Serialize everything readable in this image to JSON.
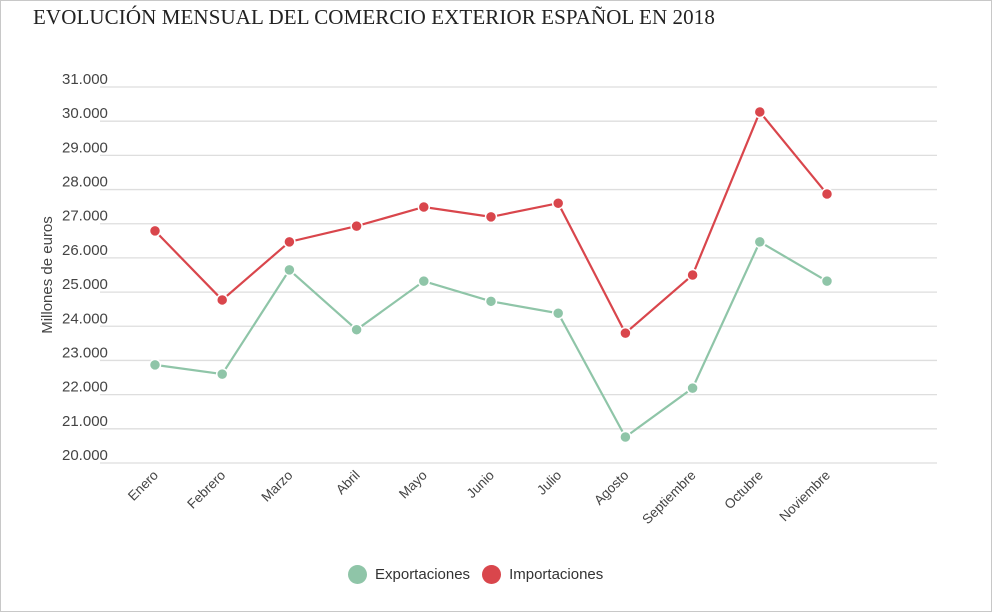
{
  "chart_data": {
    "type": "line",
    "title": "EVOLUCIÓN MENSUAL DEL COMERCIO EXTERIOR ESPAÑOL EN 2018",
    "xlabel": "",
    "ylabel": "Millones de euros",
    "ylim": [
      20000,
      31000
    ],
    "yticks": [
      20000,
      21000,
      22000,
      23000,
      24000,
      25000,
      26000,
      27000,
      28000,
      29000,
      30000,
      31000
    ],
    "ytick_labels": [
      "20.000",
      "21.000",
      "22.000",
      "23.000",
      "24.000",
      "25.000",
      "26.000",
      "27.000",
      "28.000",
      "29.000",
      "30.000",
      "31.000"
    ],
    "grid": true,
    "legend_position": "bottom",
    "categories": [
      "Enero",
      "Febrero",
      "Marzo",
      "Abril",
      "Mayo",
      "Junio",
      "Julio",
      "Agosto",
      "Septiembre",
      "Octubre",
      "Noviembre"
    ],
    "series": [
      {
        "name": "Exportaciones",
        "color": "#8fc5a8",
        "values": [
          22870,
          22600,
          25650,
          23900,
          25320,
          24730,
          24380,
          20760,
          22190,
          26470,
          25320
        ]
      },
      {
        "name": "Importaciones",
        "color": "#d9464c",
        "values": [
          26790,
          24770,
          26470,
          26930,
          27490,
          27200,
          27600,
          23800,
          25500,
          30270,
          27870
        ]
      }
    ]
  }
}
